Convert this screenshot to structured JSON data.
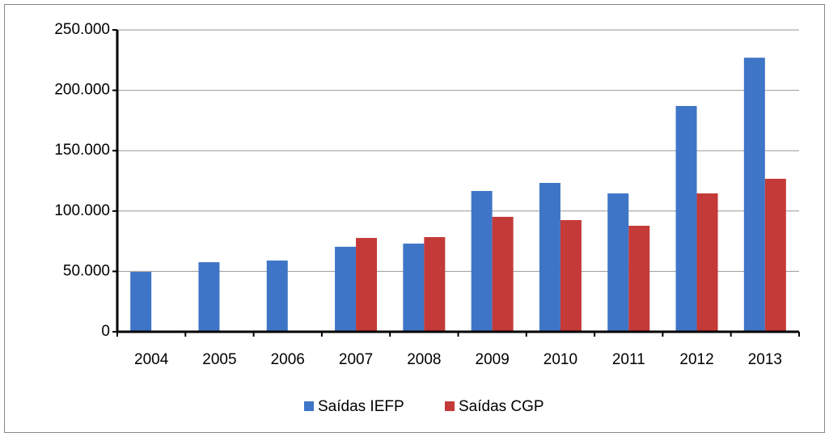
{
  "chart_data": {
    "type": "bar",
    "categories": [
      "2004",
      "2005",
      "2006",
      "2007",
      "2008",
      "2009",
      "2010",
      "2011",
      "2012",
      "2013"
    ],
    "series": [
      {
        "name": "Saídas IEFP",
        "color": "#3f75c6",
        "values": [
          49600,
          57600,
          59000,
          70400,
          73000,
          116600,
          123300,
          114600,
          187000,
          227000
        ]
      },
      {
        "name": "Saídas CGP",
        "color": "#c43a38",
        "values": [
          null,
          null,
          null,
          77700,
          78400,
          95200,
          92500,
          87800,
          114600,
          126700
        ]
      }
    ],
    "ylim": [
      0,
      250000
    ],
    "yticks": [
      0,
      {
        "value": 50000,
        "label": "50.000"
      },
      {
        "value": 100000,
        "label": "100.000"
      },
      {
        "value": 150000,
        "label": "150.000"
      },
      {
        "value": 200000,
        "label": "200.000"
      },
      {
        "value": 250000,
        "label": "250.000"
      }
    ],
    "grid": true,
    "legend": "bottom"
  }
}
